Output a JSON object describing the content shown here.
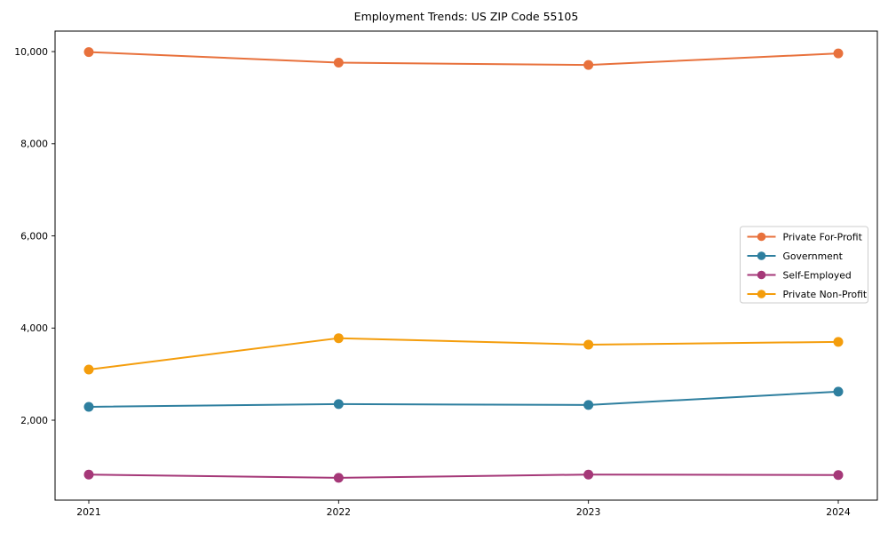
{
  "chart_data": {
    "type": "line",
    "title": "Employment Trends: US ZIP Code 55105",
    "xlabel": "",
    "ylabel": "",
    "categories": [
      "2021",
      "2022",
      "2023",
      "2024"
    ],
    "series": [
      {
        "name": "Private For-Profit",
        "color": "#e8713c",
        "values": [
          9990,
          9760,
          9710,
          9960
        ]
      },
      {
        "name": "Government",
        "color": "#2e7f9f",
        "values": [
          2290,
          2350,
          2330,
          2620
        ]
      },
      {
        "name": "Self-Employed",
        "color": "#a53878",
        "values": [
          820,
          750,
          820,
          810
        ]
      },
      {
        "name": "Private Non-Profit",
        "color": "#f49d0c",
        "values": [
          3100,
          3780,
          3640,
          3700
        ]
      }
    ],
    "yticks": [
      2000,
      4000,
      6000,
      8000,
      10000
    ],
    "ytick_labels": [
      "2,000",
      "4,000",
      "6,000",
      "8,000",
      "10,000"
    ],
    "ylim": [
      265,
      10445
    ],
    "grid": false,
    "legend_position": "center-right",
    "frame_color": "#000000",
    "legend_border_color": "#cccccc",
    "background_color": "#ffffff"
  }
}
